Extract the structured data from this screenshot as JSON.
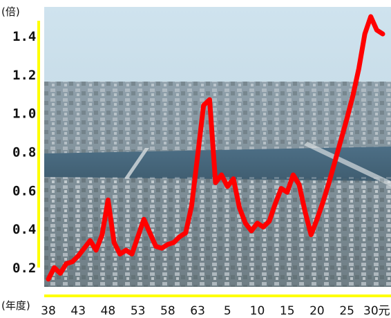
{
  "chart_data": {
    "type": "line",
    "title": "",
    "ylabel": "(倍)",
    "xlabel": "(年度)",
    "ylim": [
      0.1,
      1.55
    ],
    "y_ticks": [
      "0.2",
      "0.4",
      "0.6",
      "0.8",
      "1.0",
      "1.2",
      "1.4"
    ],
    "x_tick_labels": [
      "38",
      "43",
      "48",
      "53",
      "58",
      "63",
      "5",
      "10",
      "15",
      "20",
      "25",
      "30元"
    ],
    "grid": false,
    "legend": "none",
    "background": "aerial photo of city with river",
    "colors": {
      "line": "#ff0000",
      "axis": "#ffff00"
    },
    "series": [
      {
        "x": [
          "38",
          "39",
          "40",
          "41",
          "42",
          "43",
          "44",
          "45",
          "46",
          "47",
          "48",
          "49",
          "50",
          "51",
          "52",
          "53",
          "54",
          "55",
          "56",
          "57",
          "58",
          "59",
          "60",
          "61",
          "62",
          "63",
          "元",
          "2",
          "3",
          "4",
          "5",
          "6",
          "7",
          "8",
          "9",
          "10",
          "11",
          "12",
          "13",
          "14",
          "15",
          "16",
          "17",
          "18",
          "19",
          "20",
          "21",
          "22",
          "23",
          "24",
          "25",
          "26",
          "27",
          "28",
          "29",
          "30",
          "元"
        ],
        "values": [
          0.14,
          0.2,
          0.17,
          0.22,
          0.23,
          0.26,
          0.3,
          0.34,
          0.29,
          0.37,
          0.55,
          0.33,
          0.27,
          0.29,
          0.27,
          0.36,
          0.45,
          0.38,
          0.31,
          0.3,
          0.32,
          0.33,
          0.36,
          0.38,
          0.52,
          0.78,
          1.04,
          1.07,
          0.64,
          0.68,
          0.62,
          0.66,
          0.51,
          0.43,
          0.39,
          0.43,
          0.41,
          0.44,
          0.53,
          0.61,
          0.59,
          0.68,
          0.63,
          0.49,
          0.37,
          0.45,
          0.54,
          0.64,
          0.75,
          0.86,
          0.97,
          1.09,
          1.23,
          1.41,
          1.5,
          1.43,
          1.41
        ]
      }
    ]
  }
}
